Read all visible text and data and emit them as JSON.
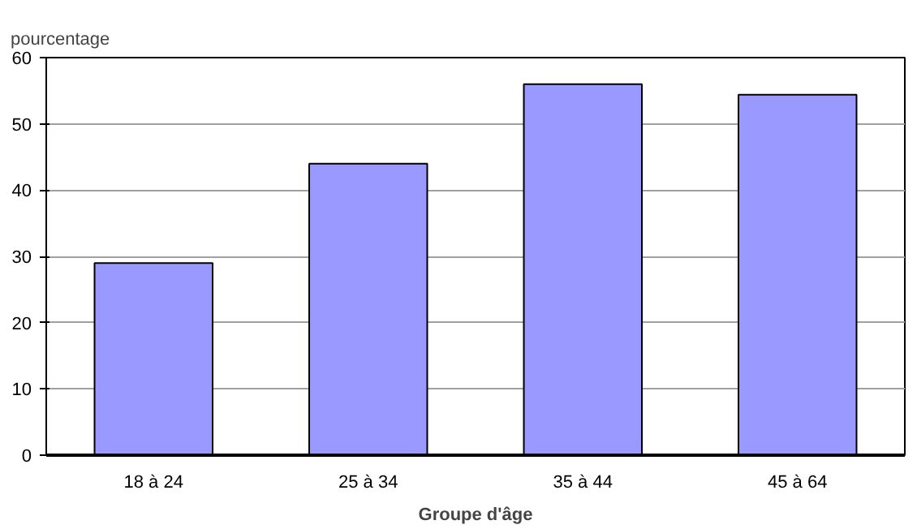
{
  "chart_data": {
    "type": "bar",
    "ylabel": "pourcentage",
    "xlabel": "Groupe d'âge",
    "categories": [
      "18 à 24",
      "25 à 34",
      "35 à 44",
      "45 à 64"
    ],
    "values": [
      29,
      44,
      56,
      54.4
    ],
    "color": "#9999ff",
    "ylim": [
      0,
      60
    ],
    "yticks": [
      0,
      10,
      20,
      30,
      40,
      50,
      60
    ],
    "grid": "y"
  }
}
